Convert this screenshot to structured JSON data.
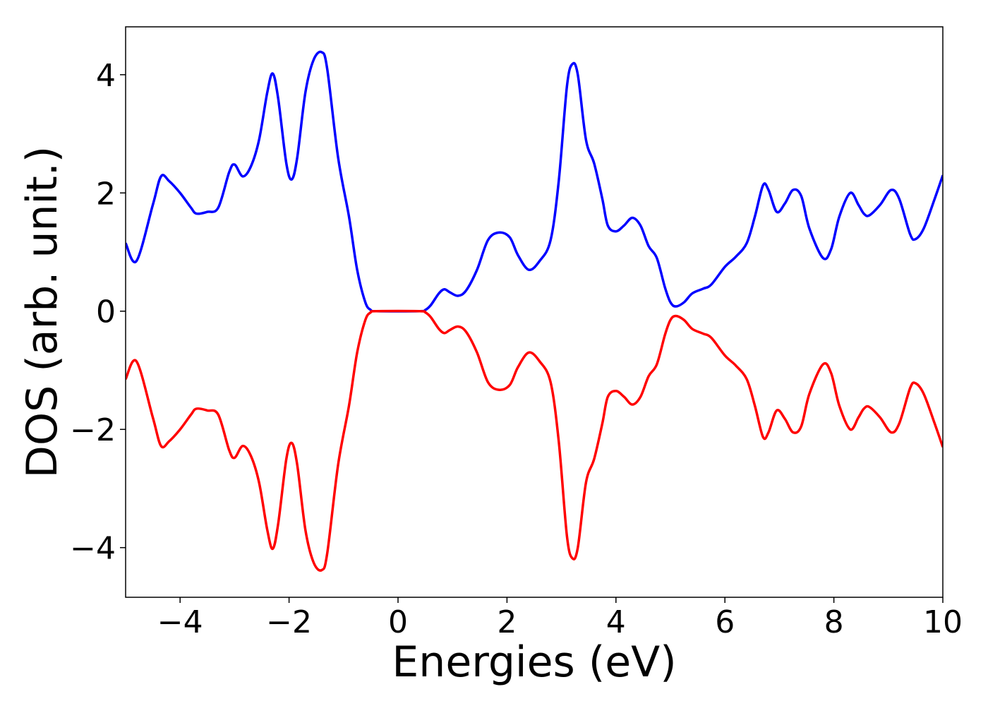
{
  "chart_data": {
    "type": "line",
    "xlabel": "Energies (eV)",
    "ylabel": "DOS (arb. unit.)",
    "x": [
      -5,
      -4.8,
      -4.5,
      -4.35,
      -4.2,
      -4.0,
      -3.8,
      -3.7,
      -3.5,
      -3.3,
      -3.1,
      -3.0,
      -2.85,
      -2.7,
      -2.55,
      -2.4,
      -2.3,
      -2.2,
      -2.05,
      -1.95,
      -1.85,
      -1.7,
      -1.55,
      -1.4,
      -1.3,
      -1.1,
      -0.9,
      -0.75,
      -0.6,
      -0.5,
      -0.4,
      0.4,
      0.5,
      0.6,
      0.75,
      0.85,
      0.95,
      1.1,
      1.25,
      1.45,
      1.65,
      1.85,
      2.05,
      2.2,
      2.4,
      2.6,
      2.8,
      2.95,
      3.1,
      3.2,
      3.3,
      3.45,
      3.6,
      3.75,
      3.85,
      4.0,
      4.15,
      4.3,
      4.45,
      4.6,
      4.75,
      4.9,
      5.0,
      5.1,
      5.25,
      5.4,
      5.6,
      5.75,
      6.0,
      6.2,
      6.4,
      6.55,
      6.7,
      6.8,
      6.95,
      7.1,
      7.25,
      7.4,
      7.55,
      7.8,
      7.95,
      8.1,
      8.3,
      8.45,
      8.55,
      8.65,
      8.85,
      9.05,
      9.2,
      9.4,
      9.5,
      9.65,
      9.85,
      10
    ],
    "series": [
      {
        "color": "#0000ff",
        "values": [
          1.15,
          0.85,
          1.8,
          2.28,
          2.2,
          2.0,
          1.75,
          1.65,
          1.68,
          1.75,
          2.35,
          2.48,
          2.28,
          2.45,
          2.9,
          3.7,
          4.02,
          3.6,
          2.5,
          2.23,
          2.6,
          3.7,
          4.25,
          4.38,
          4.1,
          2.6,
          1.6,
          0.7,
          0.15,
          0.02,
          0,
          0,
          0.02,
          0.1,
          0.3,
          0.37,
          0.32,
          0.26,
          0.35,
          0.7,
          1.2,
          1.33,
          1.25,
          0.95,
          0.7,
          0.85,
          1.2,
          2.2,
          3.8,
          4.18,
          4.0,
          2.9,
          2.5,
          1.9,
          1.45,
          1.35,
          1.45,
          1.58,
          1.45,
          1.1,
          0.9,
          0.4,
          0.15,
          0.08,
          0.15,
          0.3,
          0.38,
          0.45,
          0.75,
          0.92,
          1.15,
          1.6,
          2.13,
          2.05,
          1.68,
          1.82,
          2.05,
          1.95,
          1.4,
          0.9,
          1.05,
          1.6,
          2.0,
          1.8,
          1.65,
          1.62,
          1.8,
          2.05,
          1.9,
          1.3,
          1.22,
          1.4,
          1.9,
          2.3
        ]
      },
      {
        "color": "#ff0000",
        "values": [
          -1.15,
          -0.85,
          -1.8,
          -2.28,
          -2.2,
          -2.0,
          -1.75,
          -1.65,
          -1.68,
          -1.75,
          -2.35,
          -2.48,
          -2.28,
          -2.45,
          -2.9,
          -3.7,
          -4.02,
          -3.6,
          -2.5,
          -2.23,
          -2.6,
          -3.7,
          -4.25,
          -4.38,
          -4.1,
          -2.6,
          -1.6,
          -0.7,
          -0.15,
          -0.02,
          0,
          0,
          -0.02,
          -0.1,
          -0.3,
          -0.37,
          -0.32,
          -0.26,
          -0.35,
          -0.7,
          -1.2,
          -1.33,
          -1.25,
          -0.95,
          -0.7,
          -0.85,
          -1.2,
          -2.2,
          -3.8,
          -4.18,
          -4.0,
          -2.9,
          -2.5,
          -1.9,
          -1.45,
          -1.35,
          -1.45,
          -1.58,
          -1.45,
          -1.1,
          -0.9,
          -0.4,
          -0.15,
          -0.08,
          -0.15,
          -0.3,
          -0.38,
          -0.45,
          -0.75,
          -0.92,
          -1.15,
          -1.6,
          -2.13,
          -2.05,
          -1.68,
          -1.82,
          -2.05,
          -1.95,
          -1.4,
          -0.9,
          -1.05,
          -1.6,
          -2.0,
          -1.8,
          -1.65,
          -1.62,
          -1.8,
          -2.05,
          -1.9,
          -1.3,
          -1.22,
          -1.4,
          -1.9,
          -2.3
        ]
      }
    ],
    "xlim": [
      -5,
      10
    ],
    "xticks": [
      {
        "value": -4,
        "label": "−4"
      },
      {
        "value": -2,
        "label": "−2"
      },
      0,
      2,
      4,
      6,
      8,
      10
    ],
    "ylim": [
      -4.84,
      4.81
    ],
    "yticks": [
      {
        "value": -4,
        "label": "−4"
      },
      {
        "value": -2,
        "label": "−2"
      },
      0,
      2,
      4
    ],
    "grid": false
  }
}
